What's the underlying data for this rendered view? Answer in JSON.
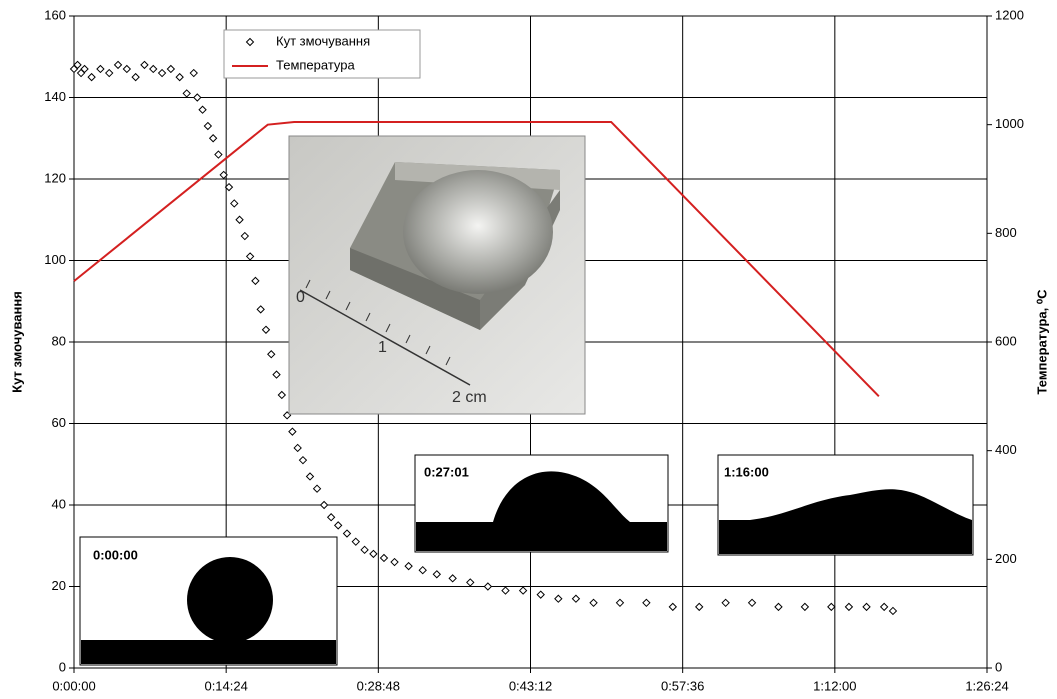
{
  "chart_data": {
    "type": "scatter",
    "y_label": "Кут змочування",
    "y2_label": "Температура, ⁰C",
    "xlim": [
      0,
      5184
    ],
    "xticks": [
      {
        "value": 0,
        "label": "0:00:00"
      },
      {
        "value": 864,
        "label": "0:14:24"
      },
      {
        "value": 1728,
        "label": "0:28:48"
      },
      {
        "value": 2592,
        "label": "0:43:12"
      },
      {
        "value": 3456,
        "label": "0:57:36"
      },
      {
        "value": 4320,
        "label": "1:12:00"
      },
      {
        "value": 5184,
        "label": "1:26:24"
      }
    ],
    "ylim": [
      0,
      160
    ],
    "yticks": [
      0,
      20,
      40,
      60,
      80,
      100,
      120,
      140,
      160
    ],
    "y2lim": [
      0,
      1200
    ],
    "y2ticks": [
      0,
      200,
      400,
      600,
      800,
      1000,
      1200
    ],
    "grid": true,
    "legend": "top",
    "series": [
      {
        "name": "Кут змочування",
        "type": "scatter",
        "color": "#000000",
        "x": [
          0,
          20,
          40,
          60,
          100,
          150,
          200,
          250,
          300,
          350,
          400,
          450,
          500,
          550,
          600,
          640,
          680,
          700,
          730,
          760,
          790,
          820,
          850,
          880,
          910,
          940,
          970,
          1000,
          1030,
          1060,
          1090,
          1120,
          1150,
          1180,
          1210,
          1240,
          1270,
          1300,
          1340,
          1380,
          1420,
          1460,
          1500,
          1550,
          1600,
          1650,
          1700,
          1760,
          1820,
          1900,
          1980,
          2060,
          2150,
          2250,
          2350,
          2450,
          2550,
          2650,
          2750,
          2850,
          2950,
          3100,
          3250,
          3400,
          3550,
          3700,
          3850,
          4000,
          4150,
          4300,
          4400,
          4500,
          4600,
          4650
        ],
        "values": [
          147,
          148,
          146,
          147,
          145,
          147,
          146,
          148,
          147,
          145,
          148,
          147,
          146,
          147,
          145,
          141,
          146,
          140,
          137,
          133,
          130,
          126,
          121,
          118,
          114,
          110,
          106,
          101,
          95,
          88,
          83,
          77,
          72,
          67,
          62,
          58,
          54,
          51,
          47,
          44,
          40,
          37,
          35,
          33,
          31,
          29,
          28,
          27,
          26,
          25,
          24,
          23,
          22,
          21,
          20,
          19,
          19,
          18,
          17,
          17,
          16,
          16,
          16,
          15,
          15,
          16,
          16,
          15,
          15,
          15,
          15,
          15,
          15,
          14
        ]
      },
      {
        "name": "Температура",
        "type": "line",
        "color": "#d42020",
        "axis": "y2",
        "x": [
          0,
          1100,
          1250,
          3050,
          4570
        ],
        "values": [
          712,
          1000,
          1005,
          1005,
          500
        ]
      }
    ],
    "inset_labels": [
      "0:00:00",
      "0:27:01",
      "1:16:00"
    ],
    "photo_labels": [
      "0",
      "1",
      "2 cm"
    ]
  }
}
